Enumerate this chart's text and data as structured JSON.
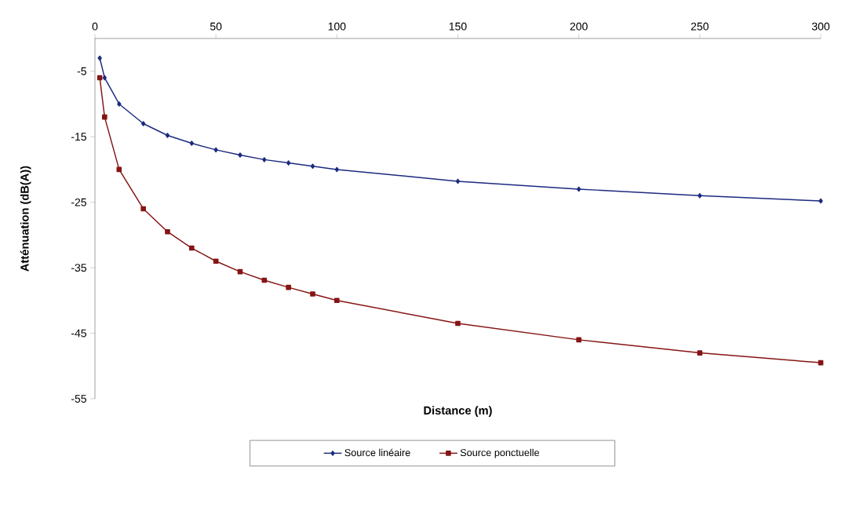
{
  "chart_data": {
    "type": "line",
    "xlabel": "Distance (m)",
    "ylabel": "Atténuation (dB(A))",
    "xlim": [
      0,
      300
    ],
    "xticks": [
      0,
      50,
      100,
      150,
      200,
      250,
      300
    ],
    "ylim": [
      -55,
      0
    ],
    "yticks": [
      -5,
      -15,
      -25,
      -35,
      -45,
      -55
    ],
    "grid": false,
    "legend": "bottom",
    "line_style": "solid",
    "series": [
      {
        "name": "Source linéaire",
        "color": "#1c2a80",
        "marker": "diamond",
        "x": [
          2,
          4,
          10,
          20,
          30,
          40,
          50,
          60,
          70,
          80,
          90,
          100,
          150,
          200,
          250,
          300
        ],
        "values": [
          -3,
          -6,
          -10,
          -13,
          -14.8,
          -16,
          -17,
          -17.8,
          -18.5,
          -19,
          -19.5,
          -20,
          -21.8,
          -23,
          -24,
          -24.8
        ]
      },
      {
        "name": "Source ponctuelle",
        "color": "#861414",
        "marker": "square",
        "x": [
          2,
          4,
          10,
          20,
          30,
          40,
          50,
          60,
          70,
          80,
          90,
          100,
          150,
          200,
          250,
          300
        ],
        "values": [
          -6,
          -12,
          -20,
          -26,
          -29.5,
          -32,
          -34,
          -35.6,
          -36.9,
          -38,
          -39,
          -40,
          -43.5,
          -46,
          -48,
          -49.5
        ]
      }
    ]
  }
}
